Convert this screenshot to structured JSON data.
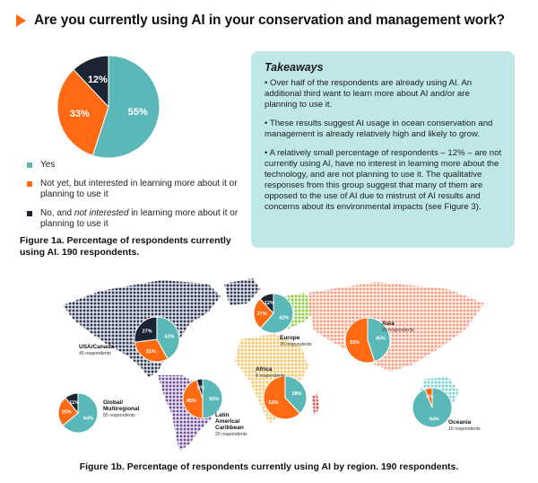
{
  "header": {
    "title": "Are you currently using AI in your conservation and management work?"
  },
  "colors": {
    "yes": "#5bb8b8",
    "interested": "#ff6a13",
    "not_interested": "#1d2433",
    "accent": "#ff6a13",
    "panel": "#bfe7e8"
  },
  "legend": {
    "yes": "Yes",
    "interested": "Not yet, but interested in learning more about it or planning to use it",
    "not_pre": "No, and ",
    "not_em": "not interested",
    "not_post": " in learning more about it or planning to use it"
  },
  "figure_1a_caption": "Figure 1a. Percentage of respondents currently using AI. 190 respondents.",
  "takeaways": {
    "heading": "Takeaways",
    "p1": "• Over half of the respondents are already using AI. An additional third want to learn more about AI and/or are planning to use it.",
    "p2": "• These results suggest AI usage in ocean conservation and management is already relatively high and likely to grow.",
    "p3": "• A relatively small percentage of respondents – 12% – are not currently using AI, have no interest in learning more about the technology, and are not planning to use it. The qualitative responses from this group suggest that many of them are opposed to the use of AI due to mistrust of AI results and concerns about its environmental impacts (see Figure 3)."
  },
  "figure_1b_caption": "Figure 1b. Percentage of respondents currently using AI by region. 190 respondents.",
  "chart_data": [
    {
      "type": "pie",
      "title": "Figure 1a. Percentage of respondents currently using AI. 190 respondents.",
      "categories": [
        "Yes",
        "Not yet, but interested in learning more about it or planning to use it",
        "No, and not interested in learning more about it or planning to use it"
      ],
      "values": [
        55,
        33,
        12
      ],
      "labels": [
        "55%",
        "33%",
        "12%"
      ]
    },
    {
      "type": "pie",
      "title": "Figure 1b. Percentage of respondents currently using AI by region. 190 respondents.",
      "categories": [
        "Yes",
        "Not yet, but interested",
        "No, and not interested"
      ],
      "regions": [
        {
          "name": "USA/Canada",
          "respondents": "45 respondents",
          "values": [
            42,
            31,
            27
          ],
          "labels": [
            "42%",
            "31%",
            "27%"
          ]
        },
        {
          "name": "Europe",
          "respondents": "26 respondents",
          "values": [
            62,
            27,
            12
          ],
          "labels": [
            "62%",
            "27%",
            "12%"
          ]
        },
        {
          "name": "Asia",
          "respondents": "20 respondents",
          "values": [
            45,
            55,
            0
          ],
          "labels": [
            "45%",
            "55%",
            ""
          ]
        },
        {
          "name": "Africa",
          "respondents": "8 respondents",
          "values": [
            38,
            62,
            0
          ],
          "labels": [
            "38%",
            "62%",
            ""
          ]
        },
        {
          "name": "Latin America/ Caribbean",
          "respondents": "20 respondents",
          "values": [
            50,
            45,
            5
          ],
          "labels": [
            "50%",
            "45%",
            "5%"
          ]
        },
        {
          "name": "Global/ Multiregional",
          "respondents": "55 respondents",
          "values": [
            64,
            25,
            11
          ],
          "labels": [
            "64%",
            "25%",
            "11%"
          ]
        },
        {
          "name": "Oceania",
          "respondents": "16 respondents",
          "values": [
            94,
            6,
            0
          ],
          "labels": [
            "94%",
            "6%",
            ""
          ]
        }
      ]
    }
  ]
}
